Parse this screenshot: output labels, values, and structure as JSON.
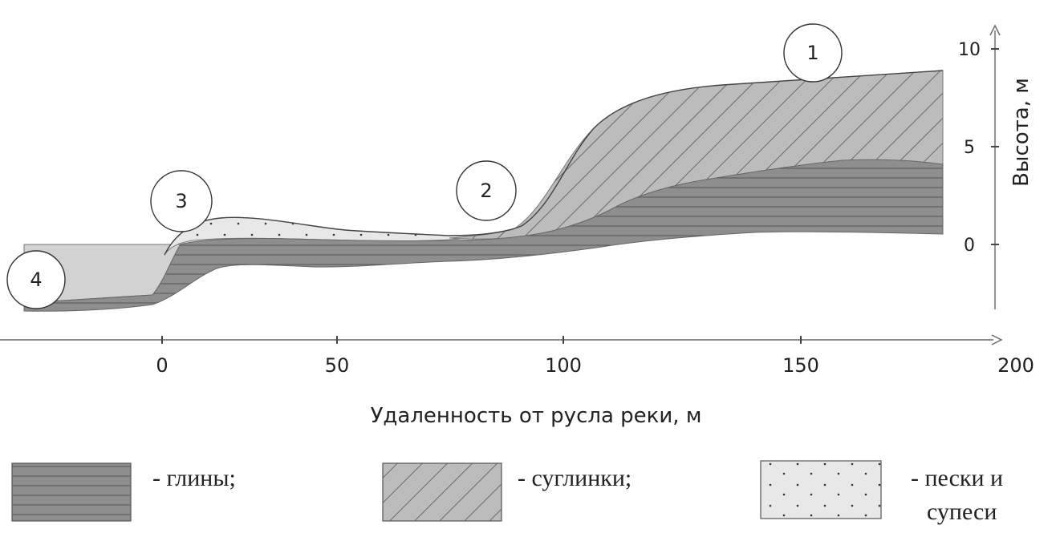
{
  "chart_data": {
    "type": "diagram",
    "x_axis": {
      "label": "Удаленность от русла реки, м",
      "ticks": [
        "0",
        "50",
        "100",
        "150",
        "200"
      ]
    },
    "y_axis": {
      "label": "Высота, м",
      "ticks": [
        "10",
        "5",
        "0"
      ]
    },
    "markers": [
      "1",
      "2",
      "3",
      "4"
    ],
    "legend": [
      {
        "label": "- глины;",
        "pattern": "horizontal-lines"
      },
      {
        "label": "- суглинки;",
        "pattern": "diagonal-hatch"
      },
      {
        "label_line1": "- пески и",
        "label_line2": "супеси",
        "pattern": "dots"
      }
    ]
  }
}
